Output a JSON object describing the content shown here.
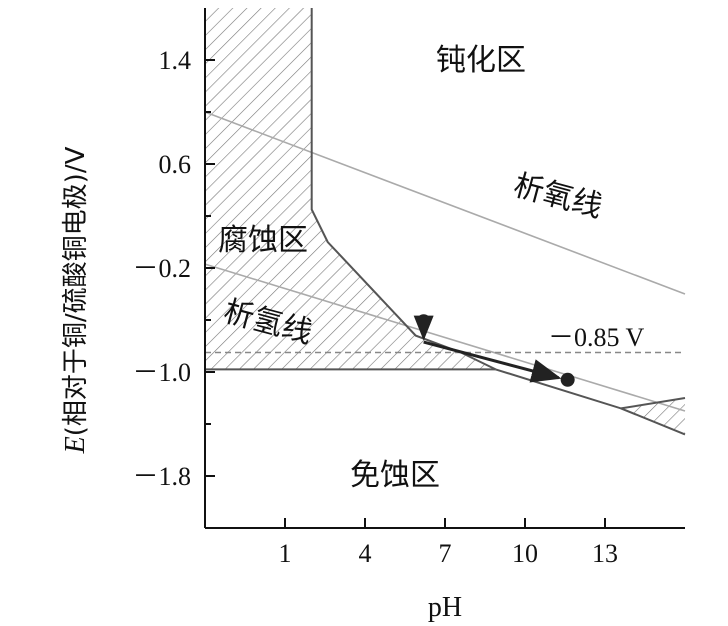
{
  "chart_data": {
    "type": "line",
    "title": "",
    "xlabel": "pH",
    "ylabel_italic": "E",
    "ylabel_rest": "(相对于铜/硫酸铜电极)/V",
    "x_ticks": [
      1,
      4,
      7,
      10,
      13
    ],
    "y_ticks": [
      {
        "value": 1.4,
        "label": "1.4"
      },
      {
        "value": 0.6,
        "label": "0.6"
      },
      {
        "value": -0.2,
        "label": "－0.2"
      },
      {
        "value": -1.0,
        "label": "－1.0"
      },
      {
        "value": -1.8,
        "label": "－1.8"
      }
    ],
    "xlim": [
      -2,
      16
    ],
    "ylim": [
      -2.2,
      1.8
    ],
    "regions": {
      "passivation": "钝化区",
      "corrosion": "腐蚀区",
      "immunity": "免蚀区"
    },
    "lines": {
      "oxygen": {
        "label": "析氧线",
        "points": [
          [
            -2,
            1.0
          ],
          [
            16,
            -0.4
          ]
        ]
      },
      "hydrogen": {
        "label": "析氢线",
        "points": [
          [
            -2,
            -0.17
          ],
          [
            16,
            -1.3
          ]
        ]
      },
      "reference": {
        "label": "－0.85 V",
        "value": -0.85
      }
    },
    "boundary_points": {
      "corrosion_left": [
        [
          -2,
          1.8
        ],
        [
          -2,
          -0.98
        ],
        [
          8.9,
          -0.98
        ]
      ],
      "corrosion_right": [
        [
          2.0,
          1.8
        ],
        [
          2.0,
          0.25
        ],
        [
          2.6,
          0.0
        ],
        [
          5.9,
          -0.72
        ],
        [
          7.6,
          -0.85
        ],
        [
          8.9,
          -0.98
        ]
      ],
      "lower_boundary": [
        [
          8.9,
          -0.98
        ],
        [
          13.6,
          -1.28
        ],
        [
          16,
          -1.2
        ]
      ],
      "upper_small": [
        [
          13.6,
          -1.28
        ],
        [
          16,
          -1.48
        ]
      ]
    },
    "arrow_points": [
      [
        6.2,
        -0.61
      ],
      [
        6.2,
        -0.77
      ],
      [
        11.6,
        -1.06
      ]
    ]
  }
}
